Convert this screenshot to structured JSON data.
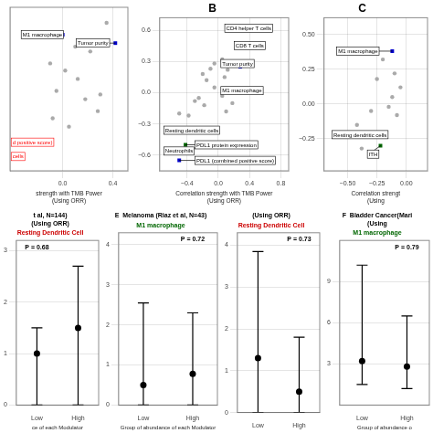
{
  "chart_data": [
    {
      "type": "scatter",
      "xlabel": "strength with TMB Power\n(Using ORR)",
      "xlim": [
        -0.42,
        0.52
      ],
      "ylim": [
        -0.72,
        0.65
      ],
      "xticks": [
        {
          "value": 0.0,
          "label": "0.0"
        },
        {
          "value": 0.4,
          "label": "0.4"
        }
      ],
      "yticks": [],
      "tick_labels": "x",
      "grid": true,
      "series": [
        {
          "color": "#aaaaaa",
          "marker": "circle",
          "x": [
            0.35,
            0.1,
            0.22,
            -0.1,
            0.02,
            0.12,
            -0.05,
            0.18,
            0.3,
            -0.08,
            0.05,
            0.28
          ],
          "y": [
            0.52,
            0.32,
            0.28,
            0.18,
            0.12,
            0.05,
            -0.05,
            -0.12,
            -0.08,
            -0.28,
            -0.35,
            -0.22
          ]
        },
        {
          "color": "#0000cc",
          "marker": "square",
          "x": [
            0.0,
            0.42
          ],
          "y": [
            0.42,
            0.35
          ],
          "labels": [
            "M1 macrophage",
            "Tumor purity"
          ],
          "label_x": [
            -0.32,
            0.12
          ],
          "label_y": [
            0.42,
            0.35
          ]
        }
      ],
      "annotations": [
        {
          "text": "d positive score)",
          "x": -0.4,
          "y": -0.48,
          "color": "red"
        },
        {
          "text": "cells",
          "x": -0.4,
          "y": -0.6,
          "color": "red"
        }
      ]
    },
    {
      "type": "scatter",
      "title": "B",
      "xlabel": "Correlation strength with TMB Power\n(Using ORR)",
      "xlim": [
        -0.75,
        0.9
      ],
      "ylim": [
        -0.75,
        0.72
      ],
      "xticks": [
        {
          "value": -0.4,
          "label": "−0.4"
        },
        {
          "value": 0.0,
          "label": "0.0"
        },
        {
          "value": 0.4,
          "label": "0.4"
        },
        {
          "value": 0.8,
          "label": "0.8"
        }
      ],
      "yticks": [
        {
          "value": -0.6,
          "label": "−0.6"
        },
        {
          "value": -0.3,
          "label": "−0.3"
        },
        {
          "value": 0.0,
          "label": "0.0"
        },
        {
          "value": 0.3,
          "label": "0.3"
        },
        {
          "value": 0.6,
          "label": "0.6"
        }
      ],
      "grid": true,
      "series": [
        {
          "color": "#aaaaaa",
          "marker": "circle",
          "x": [
            -0.05,
            -0.1,
            0.05,
            0.12,
            -0.2,
            -0.15,
            -0.05,
            0.08,
            -0.3,
            -0.25,
            -0.18,
            0.05,
            0.18,
            -0.5,
            -0.38,
            0.1
          ],
          "y": [
            0.28,
            0.23,
            0.32,
            0.22,
            0.18,
            0.12,
            0.05,
            0.15,
            -0.08,
            -0.05,
            -0.12,
            -0.03,
            -0.1,
            -0.2,
            -0.22,
            -0.18
          ]
        },
        {
          "colors": [
            "#dd0000",
            "#dd0000",
            "#0000cc",
            "#0000cc",
            "#006600",
            "#006600",
            "#dd0000",
            "#0000cc"
          ],
          "marker": "square",
          "x": [
            0.45,
            0.45,
            0.28,
            0.22,
            -0.48,
            -0.42,
            -0.62,
            -0.5
          ],
          "y": [
            0.62,
            0.44,
            0.25,
            0.02,
            -0.38,
            -0.5,
            -0.55,
            -0.65
          ],
          "labels": [
            "CD4 helper T cells",
            "CD8 T cells",
            "Tumor purity",
            "M1 macrophage",
            "Resting dendritic cells",
            "PDL1 protein expression",
            "Neutrophils",
            "PDL1 (combined positive score)"
          ],
          "label_x": [
            0.1,
            0.22,
            0.05,
            0.05,
            -0.68,
            -0.28,
            -0.68,
            -0.28
          ],
          "label_y": [
            0.62,
            0.45,
            0.28,
            0.02,
            -0.36,
            -0.5,
            -0.56,
            -0.65
          ]
        }
      ]
    },
    {
      "type": "scatter",
      "title": "C",
      "xlabel": "Correlation strengt\n(Using",
      "xlim": [
        -0.7,
        0.18
      ],
      "ylim": [
        -0.48,
        0.62
      ],
      "xticks": [
        {
          "value": -0.5,
          "label": "−0.50"
        },
        {
          "value": -0.25,
          "label": "−0.25"
        },
        {
          "value": 0.0,
          "label": "0.00"
        }
      ],
      "yticks": [
        {
          "value": -0.25,
          "label": "−0.25"
        },
        {
          "value": 0.0,
          "label": "0.00"
        },
        {
          "value": 0.25,
          "label": "0.25"
        },
        {
          "value": 0.5,
          "label": "0.50"
        }
      ],
      "grid": true,
      "series": [
        {
          "color": "#aaaaaa",
          "marker": "circle",
          "x": [
            -0.1,
            -0.05,
            -0.15,
            -0.3,
            -0.2,
            -0.08,
            -0.38,
            -0.12,
            -0.25,
            -0.42
          ],
          "y": [
            0.22,
            0.12,
            -0.02,
            -0.05,
            0.32,
            -0.08,
            -0.32,
            0.05,
            0.18,
            -0.15
          ]
        },
        {
          "colors": [
            "#0000cc",
            "#0000cc",
            "#006600"
          ],
          "marker": "square",
          "x": [
            -0.12,
            -0.32,
            -0.22
          ],
          "y": [
            0.38,
            -0.22,
            -0.3
          ],
          "labels": [
            "M1 macrophage",
            "Resting dendritic cells",
            "ITH"
          ],
          "label_x": [
            -0.58,
            -0.62,
            -0.32
          ],
          "label_y": [
            0.38,
            -0.22,
            -0.36
          ]
        }
      ]
    },
    {
      "type": "dot_whisker",
      "title": [
        "t al, N=144)",
        "(Using ORR)"
      ],
      "subtitle": "Resting Dendritic Cell",
      "subtitle_color": "#cc0000",
      "xlabel": "ce of each Modulator",
      "categories": [
        "Low",
        "High"
      ],
      "values": [
        1.0,
        1.5
      ],
      "lower": [
        0.0,
        0.0
      ],
      "upper": [
        1.5,
        2.7
      ],
      "color": "black",
      "ylim": [
        0,
        3.2
      ],
      "yticks": [
        0,
        1,
        2,
        3
      ],
      "grid": "y",
      "annotations": [
        {
          "text": "P = 0.68"
        }
      ]
    },
    {
      "type": "dot_whisker",
      "title": [
        "E  Melanoma (Riaz et al, N=43)"
      ],
      "subtitle": "M1 macrophage",
      "subtitle_color": "#006600",
      "xlabel": "Group of abundance of each Modulator",
      "categories": [
        "Low",
        "High"
      ],
      "values": [
        0.5,
        0.78
      ],
      "lower": [
        0.0,
        0.0
      ],
      "upper": [
        2.55,
        2.3
      ],
      "color": "black",
      "ylim": [
        0,
        4.3
      ],
      "yticks": [
        0,
        1,
        2,
        3,
        4
      ],
      "grid": "y",
      "annotations": [
        {
          "text": "P = 0.72"
        }
      ]
    },
    {
      "type": "dot_whisker",
      "title": [
        "(Using ORR)"
      ],
      "subtitle": "Resting Dendritic Cell",
      "subtitle_color": "#cc0000",
      "categories": [
        "Low",
        "High"
      ],
      "values": [
        1.3,
        0.5
      ],
      "lower": [
        0.0,
        0.0
      ],
      "upper": [
        3.85,
        1.8
      ],
      "color": "black",
      "ylim": [
        0,
        4.3
      ],
      "yticks": [
        0,
        1,
        2,
        3,
        4
      ],
      "grid": "y",
      "annotations": [
        {
          "text": "P = 0.73"
        }
      ]
    },
    {
      "type": "dot_whisker",
      "title": [
        "F  Bladder Cancer(Mari",
        "(Using"
      ],
      "subtitle": "M1 macrophage",
      "subtitle_color": "#006600",
      "xlabel": "Group of abundance o",
      "categories": [
        "Low",
        "High"
      ],
      "values": [
        3.2,
        2.8
      ],
      "lower": [
        1.5,
        1.2
      ],
      "upper": [
        10.2,
        6.5
      ],
      "color": "black",
      "ylim": [
        0,
        12
      ],
      "yticks": [
        3,
        6,
        9
      ],
      "grid": "y",
      "annotations": [
        {
          "text": "P = 0.79"
        }
      ]
    }
  ]
}
